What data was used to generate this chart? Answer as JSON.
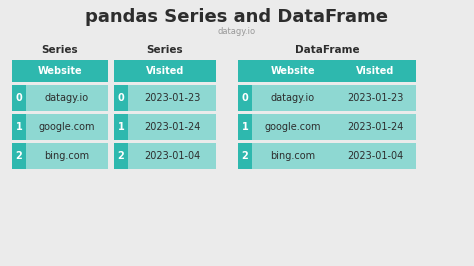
{
  "title": "pandas Series and DataFrame",
  "subtitle": "datagy.io",
  "bg_color": "#ebebeb",
  "teal_dark": "#2eb8ae",
  "teal_light": "#8ed8d2",
  "text_dark": "#2d2d2d",
  "text_white": "#ffffff",
  "subtitle_color": "#999999",
  "series1_label": "Series",
  "series2_label": "Series",
  "dataframe_label": "DataFrame",
  "col1_header": "Website",
  "col2_header": "Visited",
  "index": [
    "0",
    "1",
    "2"
  ],
  "websites": [
    "datagy.io",
    "google.com",
    "bing.com"
  ],
  "dates": [
    "2023-01-23",
    "2023-01-24",
    "2023-01-04"
  ],
  "title_fontsize": 13,
  "subtitle_fontsize": 6,
  "label_fontsize": 7.5,
  "header_fontsize": 7,
  "cell_fontsize": 7
}
